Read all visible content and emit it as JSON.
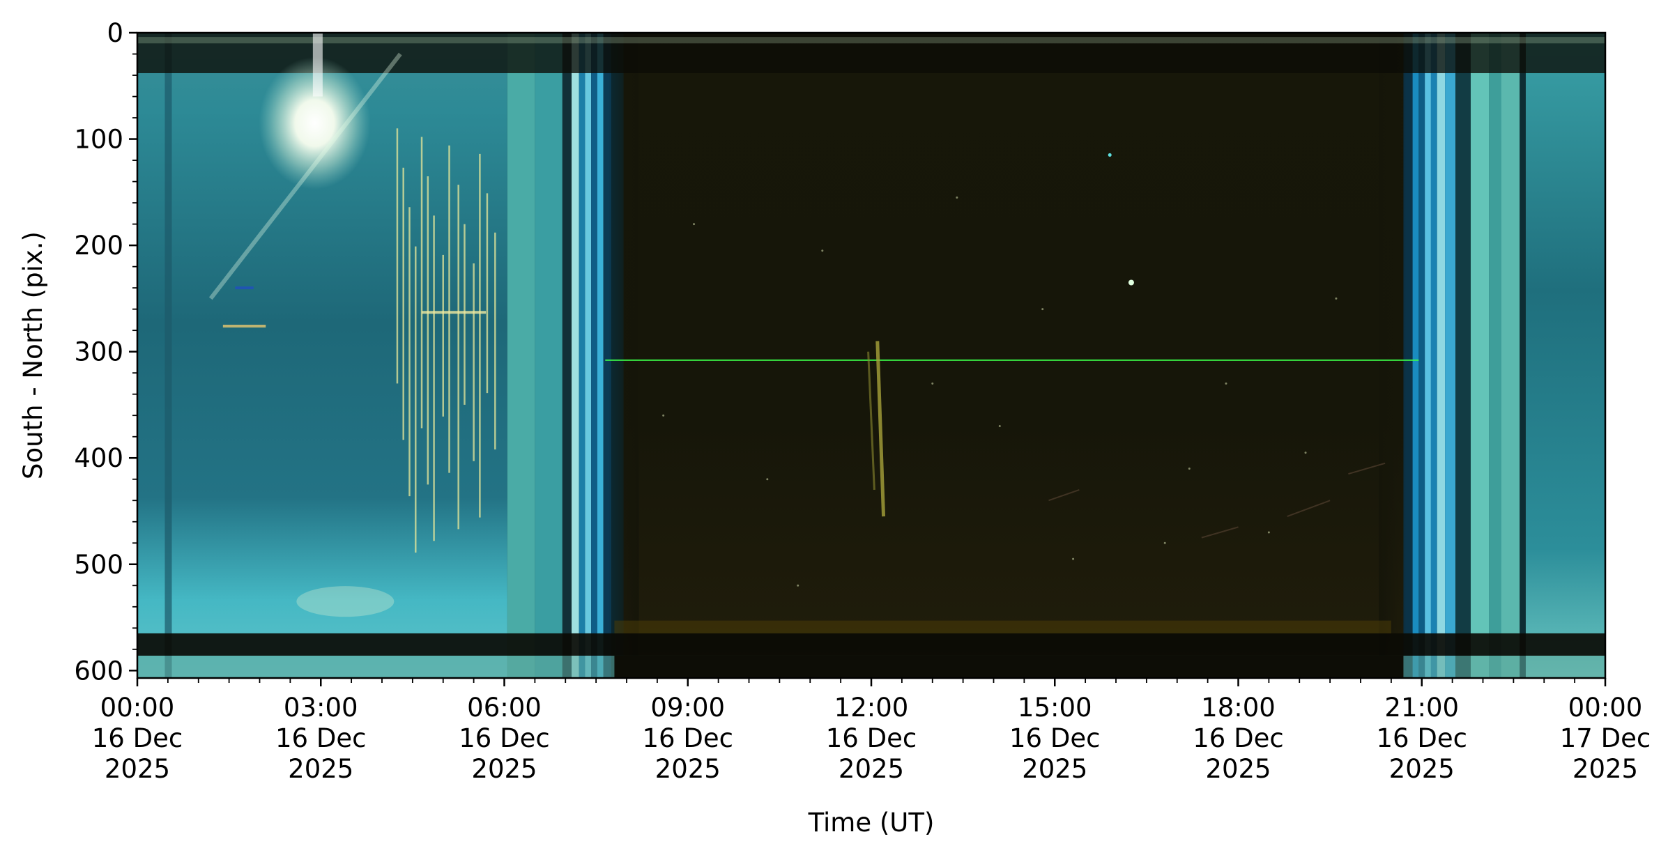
{
  "chart_data": {
    "type": "heatmap",
    "title": "",
    "xlabel": "Time (UT)",
    "ylabel": "South - North (pix.)",
    "x_range": [
      "2025-12-16T00:00",
      "2025-12-17T00:00"
    ],
    "ylim": [
      607,
      0
    ],
    "y_inverted": true,
    "y_ticks": [
      0,
      100,
      200,
      300,
      400,
      500,
      600
    ],
    "y_tick_labels": [
      "0",
      "100",
      "200",
      "300",
      "400",
      "500",
      "600"
    ],
    "x_ticks": [
      {
        "time": "2025-12-16T00:00",
        "label": [
          "00:00",
          "16 Dec",
          "2025"
        ]
      },
      {
        "time": "2025-12-16T03:00",
        "label": [
          "03:00",
          "16 Dec",
          "2025"
        ]
      },
      {
        "time": "2025-12-16T06:00",
        "label": [
          "06:00",
          "16 Dec",
          "2025"
        ]
      },
      {
        "time": "2025-12-16T09:00",
        "label": [
          "09:00",
          "16 Dec",
          "2025"
        ]
      },
      {
        "time": "2025-12-16T12:00",
        "label": [
          "12:00",
          "16 Dec",
          "2025"
        ]
      },
      {
        "time": "2025-12-16T15:00",
        "label": [
          "15:00",
          "16 Dec",
          "2025"
        ]
      },
      {
        "time": "2025-12-16T18:00",
        "label": [
          "18:00",
          "16 Dec",
          "2025"
        ]
      },
      {
        "time": "2025-12-16T21:00",
        "label": [
          "21:00",
          "16 Dec",
          "2025"
        ]
      },
      {
        "time": "2025-12-17T00:00",
        "label": [
          "00:00",
          "17 Dec",
          "2025"
        ]
      }
    ],
    "minor_ticks_hours": 0.5,
    "grid": false,
    "legend": "none",
    "colors": {
      "day_sky": "#1e6a78",
      "day_sky_light": "#3fb3c0",
      "twilight_blue": "#1a8ab8",
      "night_sky": "#13140a",
      "horizon_band": "#0b0b05",
      "green_line": "#3cff4a",
      "sun": "#ffffff"
    }
  }
}
